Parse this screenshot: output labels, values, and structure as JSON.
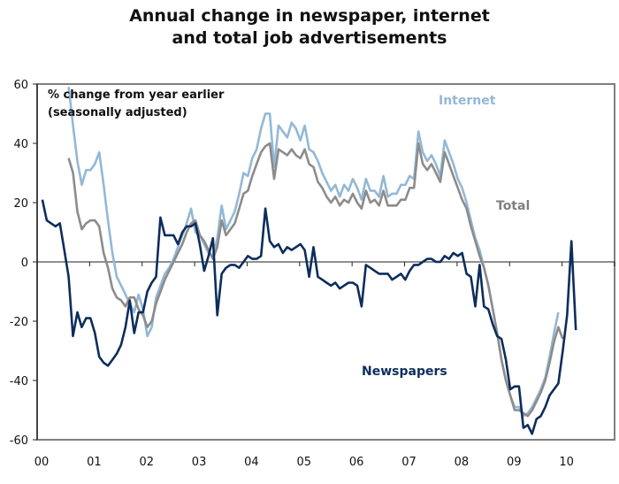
{
  "chart_data": {
    "type": "line",
    "title": "Annual change in newspaper, internet and total job advertisements",
    "title_lines": [
      "Annual change in newspaper, internet",
      "and total job advertisements"
    ],
    "annotation": [
      "% change from year earlier",
      "(seasonally adjusted)"
    ],
    "xlabel": "",
    "ylabel": "",
    "ylim": [
      -60,
      60
    ],
    "yticks": [
      60,
      40,
      20,
      0,
      -20,
      -40,
      -60
    ],
    "xlim": [
      2000,
      2011
    ],
    "xticks": [
      "00",
      "01",
      "02",
      "03",
      "04",
      "05",
      "06",
      "07",
      "08",
      "09",
      "10"
    ],
    "grid": false,
    "legend": "inline labels",
    "series": [
      {
        "name": "Internet",
        "label": "Internet",
        "color": "#93b8d6",
        "start": 2000.6,
        "step": 0.0833,
        "values": [
          59,
          46,
          34,
          26,
          31,
          31,
          33,
          37,
          26,
          14,
          3,
          -5,
          -8,
          -11,
          -14,
          -17,
          -11,
          -16,
          -25,
          -22,
          -12,
          -8,
          -4,
          -2,
          1,
          5,
          9,
          13,
          18,
          10,
          9,
          6,
          3,
          2,
          8,
          19,
          11,
          14,
          17,
          23,
          30,
          29,
          35,
          38,
          45,
          50,
          50,
          32,
          46,
          44,
          42,
          47,
          45,
          41,
          46,
          38,
          37,
          34,
          30,
          27,
          24,
          26,
          22,
          26,
          24,
          28,
          25,
          21,
          28,
          24,
          24,
          22,
          29,
          22,
          23,
          23,
          26,
          26,
          29,
          28,
          44,
          37,
          34,
          36,
          33,
          29,
          41,
          37,
          33,
          28,
          25,
          20,
          14,
          8,
          4,
          -2,
          -8,
          -16,
          -24,
          -33,
          -40,
          -45,
          -49,
          -49,
          -52,
          -51,
          -49,
          -46,
          -43,
          -39,
          -32,
          -24,
          -17
        ]
      },
      {
        "name": "Total",
        "label": "Total",
        "color": "#8c8c8c",
        "start": 2000.6,
        "step": 0.0833,
        "values": [
          35,
          30,
          17,
          11,
          13,
          14,
          14,
          12,
          3,
          -2,
          -9,
          -12,
          -13,
          -15,
          -12,
          -12,
          -16,
          -18,
          -22,
          -20,
          -14,
          -10,
          -6,
          -3,
          0,
          3,
          6,
          10,
          13,
          14,
          9,
          7,
          4,
          1,
          5,
          14,
          9,
          11,
          13,
          18,
          23,
          24,
          29,
          33,
          37,
          39,
          40,
          28,
          38,
          37,
          36,
          38,
          36,
          35,
          38,
          33,
          32,
          27,
          25,
          22,
          20,
          22,
          19,
          21,
          20,
          23,
          20,
          18,
          24,
          20,
          21,
          19,
          24,
          19,
          19,
          19,
          21,
          21,
          25,
          25,
          40,
          33,
          31,
          33,
          30,
          27,
          37,
          33,
          29,
          25,
          21,
          18,
          12,
          7,
          2,
          -2,
          -8,
          -16,
          -24,
          -33,
          -40,
          -45,
          -50,
          -50,
          -51,
          -52,
          -50,
          -47,
          -44,
          -40,
          -34,
          -27,
          -22,
          -26
        ]
      },
      {
        "name": "Newspapers",
        "label": "Newspapers",
        "color": "#0d2d5c",
        "start": 2000.1,
        "step": 0.0833,
        "values": [
          21,
          14,
          13,
          12,
          13,
          4,
          -5,
          -25,
          -17,
          -22,
          -19,
          -19,
          -24,
          -32,
          -34,
          -35,
          -33,
          -31,
          -28,
          -22,
          -13,
          -24,
          -17,
          -17,
          -10,
          -7,
          -5,
          15,
          9,
          9,
          9,
          6,
          10,
          12,
          12,
          13,
          6,
          -3,
          2,
          8,
          -18,
          -4,
          -2,
          -1,
          -1,
          -2,
          0,
          2,
          1,
          1,
          2,
          18,
          7,
          5,
          6,
          3,
          5,
          4,
          5,
          6,
          4,
          -5,
          5,
          -5,
          -6,
          -7,
          -8,
          -7,
          -9,
          -8,
          -7,
          -7,
          -8,
          -15,
          -1,
          -2,
          -3,
          -4,
          -4,
          -4,
          -6,
          -5,
          -4,
          -6,
          -3,
          -1,
          -1,
          0,
          1,
          1,
          0,
          0,
          2,
          1,
          3,
          2,
          3,
          -4,
          -5,
          -15,
          -1,
          -15,
          -16,
          -21,
          -25,
          -26,
          -33,
          -43,
          -42,
          -42,
          -56,
          -55,
          -58,
          -53,
          -52,
          -49,
          -45,
          -43,
          -41,
          -30,
          -18,
          7,
          -23
        ]
      }
    ]
  }
}
